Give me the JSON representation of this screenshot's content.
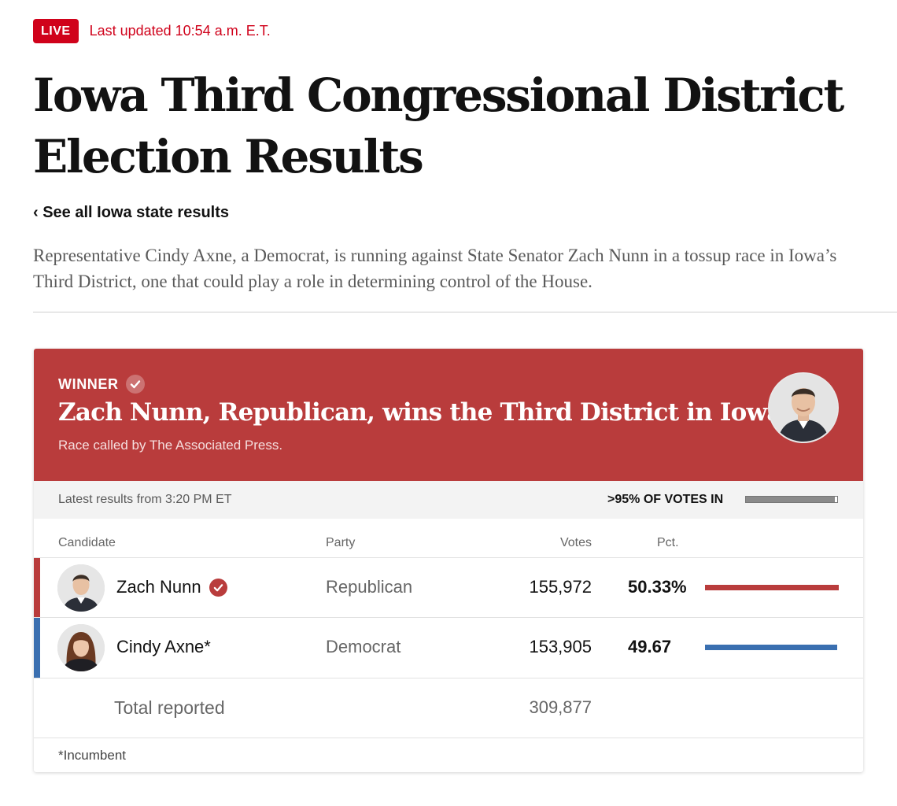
{
  "live": {
    "badge": "LIVE",
    "updated": "Last updated 10:54 a.m. E.T."
  },
  "headline": "Iowa Third Congressional District Election Results",
  "back_link": "‹ See all Iowa state results",
  "summary": "Representative Cindy Axne, a Democrat, is running against State Senator Zach Nunn in a tossup race in Iowa’s Third District, one that could play a role in determining control of the House.",
  "winner": {
    "label": "WINNER",
    "title": "Zach Nunn, Republican, wins the Third District in Iowa.",
    "called_by": "Race called by The Associated Press."
  },
  "status": {
    "latest": "Latest results from 3:20 PM ET",
    "votes_in": ">95% OF VOTES IN",
    "progress": 0.97
  },
  "table": {
    "headers": {
      "candidate": "Candidate",
      "party": "Party",
      "votes": "Votes",
      "pct": "Pct."
    },
    "rows": [
      {
        "name": "Zach Nunn",
        "party": "Republican",
        "votes": "155,972",
        "pct": "50.33%",
        "pct_value": 50.33,
        "color": "#b93c3c",
        "winner": true
      },
      {
        "name": "Cindy Axne*",
        "party": "Democrat",
        "votes": "153,905",
        "pct": "49.67",
        "pct_value": 49.67,
        "color": "#3a6fb0",
        "winner": false
      }
    ],
    "total_label": "Total reported",
    "total_votes": "309,877",
    "footnote": "*Incumbent"
  },
  "colors": {
    "live_red": "#d0021b",
    "republican": "#b93c3c",
    "democrat": "#3a6fb0"
  }
}
